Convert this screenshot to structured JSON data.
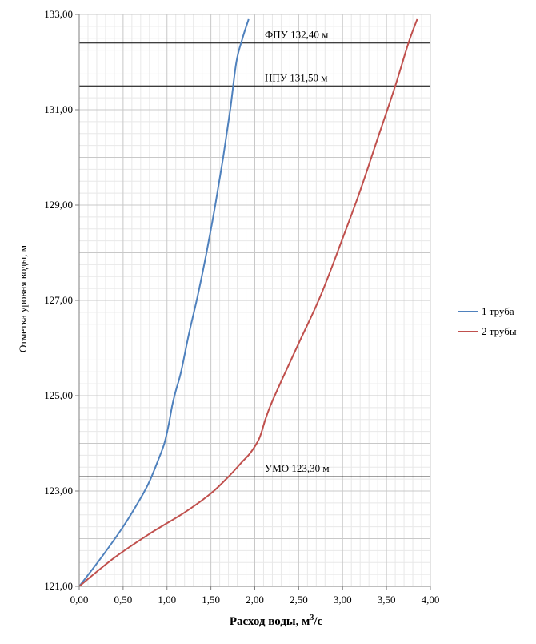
{
  "chart_data": {
    "type": "line",
    "xlabel": "Расход воды, м",
    "xlabel_sup": "3",
    "xlabel_tail": "/с",
    "ylabel": "Отметка уровня воды, м",
    "xlim": [
      0,
      4
    ],
    "ylim": [
      121,
      133
    ],
    "x_ticks": [
      "0,00",
      "0,50",
      "1,00",
      "1,50",
      "2,00",
      "2,50",
      "3,00",
      "3,50",
      "4,00"
    ],
    "y_ticks": [
      "121,00",
      "123,00",
      "125,00",
      "127,00",
      "129,00",
      "131,00",
      "133,00"
    ],
    "grid": true,
    "legend_position": "right",
    "reference_lines": [
      {
        "y": 132.4,
        "label": "ФПУ 132,40 м"
      },
      {
        "y": 131.5,
        "label": "НПУ 131,50 м"
      },
      {
        "y": 123.3,
        "label": "УМО 123,30 м"
      }
    ],
    "series": [
      {
        "name": "1 труба",
        "color": "#4F81BD",
        "points": [
          [
            0,
            121
          ],
          [
            0.25,
            121.6
          ],
          [
            0.5,
            122.25
          ],
          [
            0.7,
            122.85
          ],
          [
            0.8,
            123.2
          ],
          [
            0.9,
            123.65
          ],
          [
            0.97,
            124.0
          ],
          [
            1.02,
            124.4
          ],
          [
            1.06,
            124.8
          ],
          [
            1.1,
            125.1
          ],
          [
            1.16,
            125.5
          ],
          [
            1.25,
            126.3
          ],
          [
            1.35,
            127.1
          ],
          [
            1.45,
            128.0
          ],
          [
            1.55,
            129.0
          ],
          [
            1.64,
            130.0
          ],
          [
            1.72,
            131.0
          ],
          [
            1.79,
            132.0
          ],
          [
            1.86,
            132.5
          ],
          [
            1.93,
            132.9
          ]
        ]
      },
      {
        "name": "2 трубы",
        "color": "#C0504D",
        "points": [
          [
            0,
            121
          ],
          [
            0.4,
            121.6
          ],
          [
            0.8,
            122.1
          ],
          [
            1.2,
            122.55
          ],
          [
            1.5,
            122.95
          ],
          [
            1.7,
            123.3
          ],
          [
            1.85,
            123.6
          ],
          [
            1.95,
            123.8
          ],
          [
            2.05,
            124.1
          ],
          [
            2.12,
            124.5
          ],
          [
            2.18,
            124.8
          ],
          [
            2.3,
            125.3
          ],
          [
            2.5,
            126.1
          ],
          [
            2.75,
            127.1
          ],
          [
            3.0,
            128.3
          ],
          [
            3.2,
            129.3
          ],
          [
            3.4,
            130.4
          ],
          [
            3.6,
            131.5
          ],
          [
            3.75,
            132.4
          ],
          [
            3.85,
            132.9
          ]
        ]
      }
    ]
  }
}
